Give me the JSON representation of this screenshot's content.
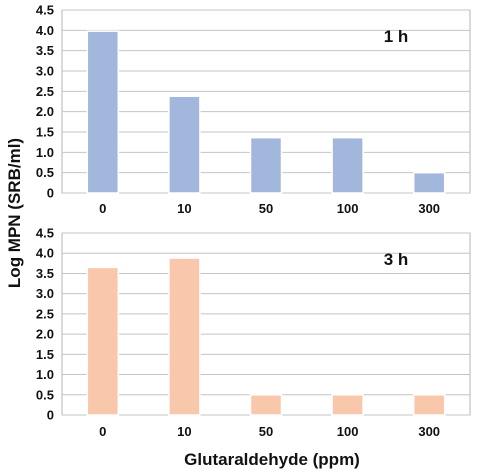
{
  "chart_data": {
    "type": "bar",
    "xlabel": "Glutaraldehyde (ppm)",
    "ylabel": "Log MPN (SRB/ml)",
    "categories": [
      "0",
      "10",
      "50",
      "100",
      "300"
    ],
    "yticks": [
      "0",
      "0.5",
      "1.0",
      "1.5",
      "2.0",
      "2.5",
      "3.0",
      "3.5",
      "4.0",
      "4.5"
    ],
    "ylim": [
      0,
      4.5
    ],
    "grid": true,
    "panels": [
      {
        "label": "1 h",
        "values": [
          3.98,
          2.38,
          1.36,
          1.36,
          0.5
        ],
        "color": "#a3b6dc"
      },
      {
        "label": "3 h",
        "values": [
          3.65,
          3.88,
          0.5,
          0.5,
          0.5
        ],
        "color": "#f8c7ac"
      }
    ]
  }
}
